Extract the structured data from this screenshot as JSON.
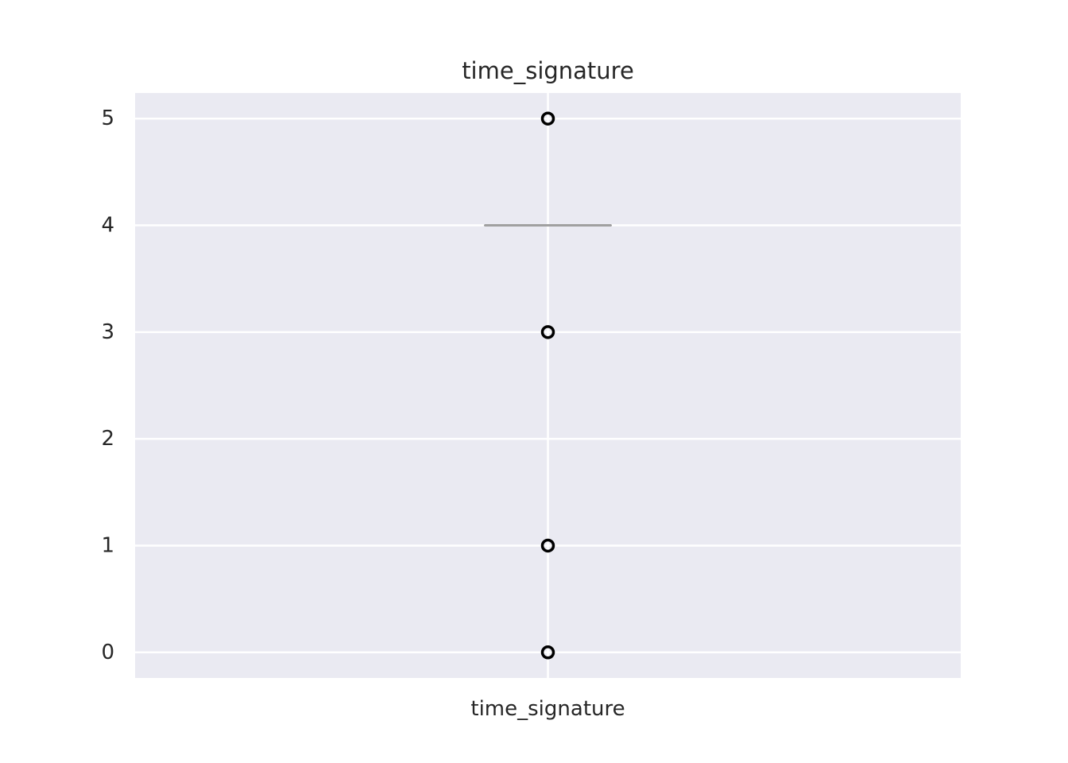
{
  "chart_data": {
    "type": "box",
    "title": "time_signature",
    "xlabel": "",
    "ylabel": "",
    "categories": [
      "time_signature"
    ],
    "ylim": [
      -0.24,
      5.24
    ],
    "yticks": [
      0,
      1,
      2,
      3,
      4,
      5
    ],
    "grid": true,
    "boxes": [
      {
        "name": "time_signature",
        "q1": 4,
        "median": 4,
        "q3": 4,
        "whisker_low": 4,
        "whisker_high": 4,
        "outliers": [
          0,
          1,
          3,
          5
        ]
      }
    ],
    "colors": {
      "background": "#EAEAF2",
      "grid": "#FFFFFF",
      "median": "#A0A0A0",
      "outlier_edge": "#000000",
      "text": "#262626"
    }
  }
}
